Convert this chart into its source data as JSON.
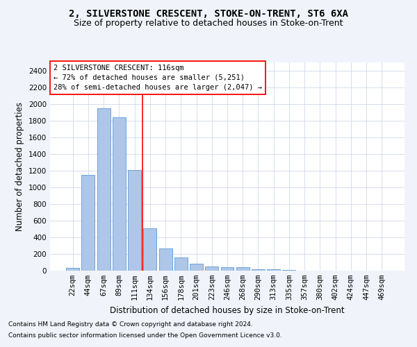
{
  "title": "2, SILVERSTONE CRESCENT, STOKE-ON-TRENT, ST6 6XA",
  "subtitle": "Size of property relative to detached houses in Stoke-on-Trent",
  "xlabel": "Distribution of detached houses by size in Stoke-on-Trent",
  "ylabel": "Number of detached properties",
  "footnote1": "Contains HM Land Registry data © Crown copyright and database right 2024.",
  "footnote2": "Contains public sector information licensed under the Open Government Licence v3.0.",
  "bar_labels": [
    "22sqm",
    "44sqm",
    "67sqm",
    "89sqm",
    "111sqm",
    "134sqm",
    "156sqm",
    "178sqm",
    "201sqm",
    "223sqm",
    "246sqm",
    "268sqm",
    "290sqm",
    "313sqm",
    "335sqm",
    "357sqm",
    "380sqm",
    "402sqm",
    "424sqm",
    "447sqm",
    "469sqm"
  ],
  "bar_values": [
    30,
    1150,
    1950,
    1840,
    1210,
    510,
    265,
    155,
    80,
    50,
    45,
    40,
    20,
    18,
    10,
    0,
    0,
    0,
    0,
    0,
    0
  ],
  "bar_color": "#aec6e8",
  "bar_edge_color": "#5b9bd5",
  "ylim": [
    0,
    2500
  ],
  "yticks": [
    0,
    200,
    400,
    600,
    800,
    1000,
    1200,
    1400,
    1600,
    1800,
    2000,
    2200,
    2400
  ],
  "vline_x": 4.5,
  "vline_color": "red",
  "annotation_title": "2 SILVERSTONE CRESCENT: 116sqm",
  "annotation_line1": "← 72% of detached houses are smaller (5,251)",
  "annotation_line2": "28% of semi-detached houses are larger (2,047) →",
  "annotation_box_color": "red",
  "bg_color": "#f0f4fa",
  "plot_bg_color": "#ffffff",
  "grid_color": "#d0d8e8",
  "title_fontsize": 10,
  "subtitle_fontsize": 9,
  "axis_label_fontsize": 8.5,
  "tick_fontsize": 7.5,
  "annotation_fontsize": 7.5,
  "footnote_fontsize": 6.5
}
